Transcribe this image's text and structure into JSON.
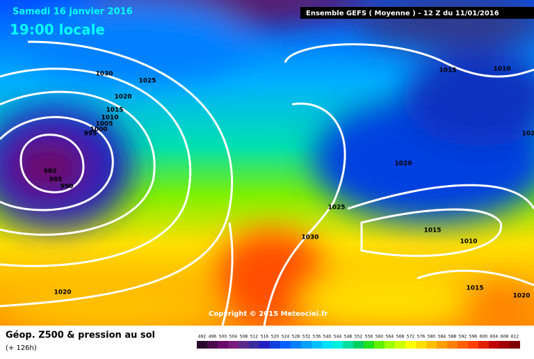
{
  "header": {
    "date": "Samedi 16 janvier 2016",
    "time": "19:00 locale",
    "run": "Ensemble GEFS  ( Moyenne )  -  12 Z du 11/01/2016"
  },
  "isobars": [
    "1030",
    "1025",
    "1020",
    "1015",
    "1010",
    "1005",
    "1000",
    "995",
    "980",
    "985",
    "990",
    "1015",
    "1010",
    "102",
    "1020",
    "1025",
    "1030",
    "1015",
    "1010",
    "1015",
    "1020",
    "1020"
  ],
  "copyright": "Copyright © 2015 Meteociel.fr",
  "footer": {
    "title": "Géop. Z500 & pression au sol",
    "lead": "(+ 126h)"
  },
  "scale": {
    "labels": [
      492,
      496,
      500,
      504,
      508,
      512,
      516,
      520,
      524,
      528,
      532,
      536,
      540,
      544,
      548,
      552,
      556,
      560,
      564,
      568,
      572,
      576,
      580,
      584,
      588,
      592,
      596,
      600,
      604,
      608,
      612
    ],
    "colors": [
      "#2a0a2a",
      "#4b0a4b",
      "#6b0a6b",
      "#7a1a7a",
      "#5a2a8a",
      "#3a2aa0",
      "#2020c0",
      "#1040e0",
      "#0060ff",
      "#0080ff",
      "#00a0ff",
      "#00c0ff",
      "#00e0ff",
      "#00f0e0",
      "#00e0a0",
      "#00d060",
      "#20e020",
      "#60f000",
      "#a0ff00",
      "#d0ff00",
      "#ffff00",
      "#ffe000",
      "#ffc000",
      "#ffa000",
      "#ff8000",
      "#ff6000",
      "#ff4000",
      "#e02000",
      "#c00000",
      "#a00000",
      "#800000"
    ]
  }
}
